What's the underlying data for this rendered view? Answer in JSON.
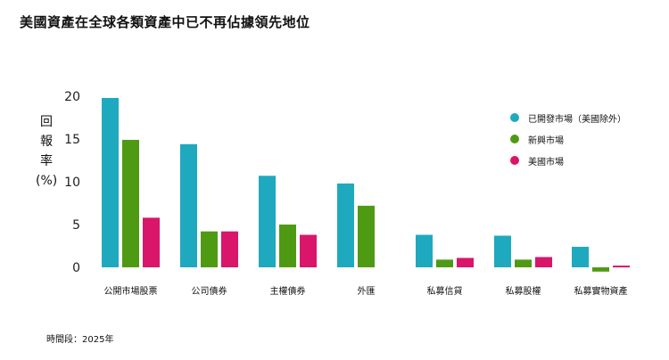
{
  "chart_data": {
    "type": "bar",
    "title": "美國資產在全球各類資產中已不再佔據領先地位",
    "ylabel": "回報率(%)",
    "ylabel_lines": [
      "回",
      "報",
      "率",
      "(%)"
    ],
    "xlabel": "",
    "ylim": [
      -0.5,
      21
    ],
    "yticks": [
      0,
      5,
      10,
      15,
      20
    ],
    "categories": [
      "公開市場股票",
      "公司債券",
      "主權債券",
      "外匯",
      "私募信貸",
      "私募股權",
      "私募實物資產"
    ],
    "series": [
      {
        "name": "已開發市場（美國除外）",
        "color": "#1fa9be",
        "values": [
          19.8,
          14.4,
          10.7,
          9.8,
          3.8,
          3.7,
          2.4
        ]
      },
      {
        "name": "新興市場",
        "color": "#4f9a13",
        "values": [
          14.9,
          4.2,
          5.0,
          7.2,
          0.9,
          0.9,
          -0.5
        ]
      },
      {
        "name": "美國市場",
        "color": "#d9166a",
        "values": [
          5.8,
          4.2,
          3.8,
          null,
          1.1,
          1.2,
          0.2
        ]
      }
    ],
    "legend_position": "right",
    "grid": false
  },
  "footnote": "時間段：2025年"
}
